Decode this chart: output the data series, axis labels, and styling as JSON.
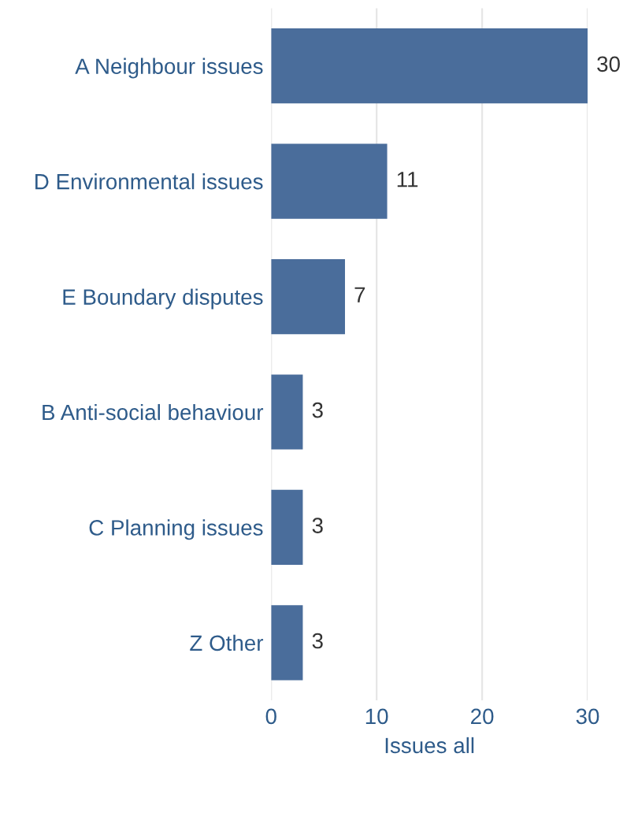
{
  "chart_data": {
    "type": "bar",
    "orientation": "horizontal",
    "xlabel": "Issues all",
    "categories": [
      "A Neighbour issues",
      "D Environmental issues",
      "E Boundary disputes",
      "B Anti-social behaviour",
      "C Planning issues",
      "Z Other"
    ],
    "values": [
      30,
      11,
      7,
      3,
      3,
      3
    ],
    "color": "#4a6d9b",
    "xlim": [
      0,
      30
    ],
    "xticks": [
      0,
      10,
      20,
      30
    ],
    "grid": "x",
    "data_labels": true
  }
}
